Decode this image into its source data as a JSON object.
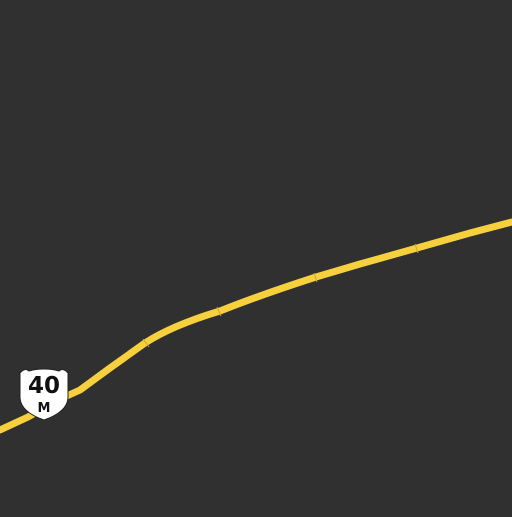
{
  "map": {
    "background_color": "#303030",
    "road_color": "#f7d13d",
    "road_segment_tick_color": "#c9a92f",
    "route_shield": {
      "icon": "highway-shield-icon",
      "number": "40",
      "suffix": "M",
      "fill_color": "#ffffff",
      "text_color": "#111111"
    }
  }
}
